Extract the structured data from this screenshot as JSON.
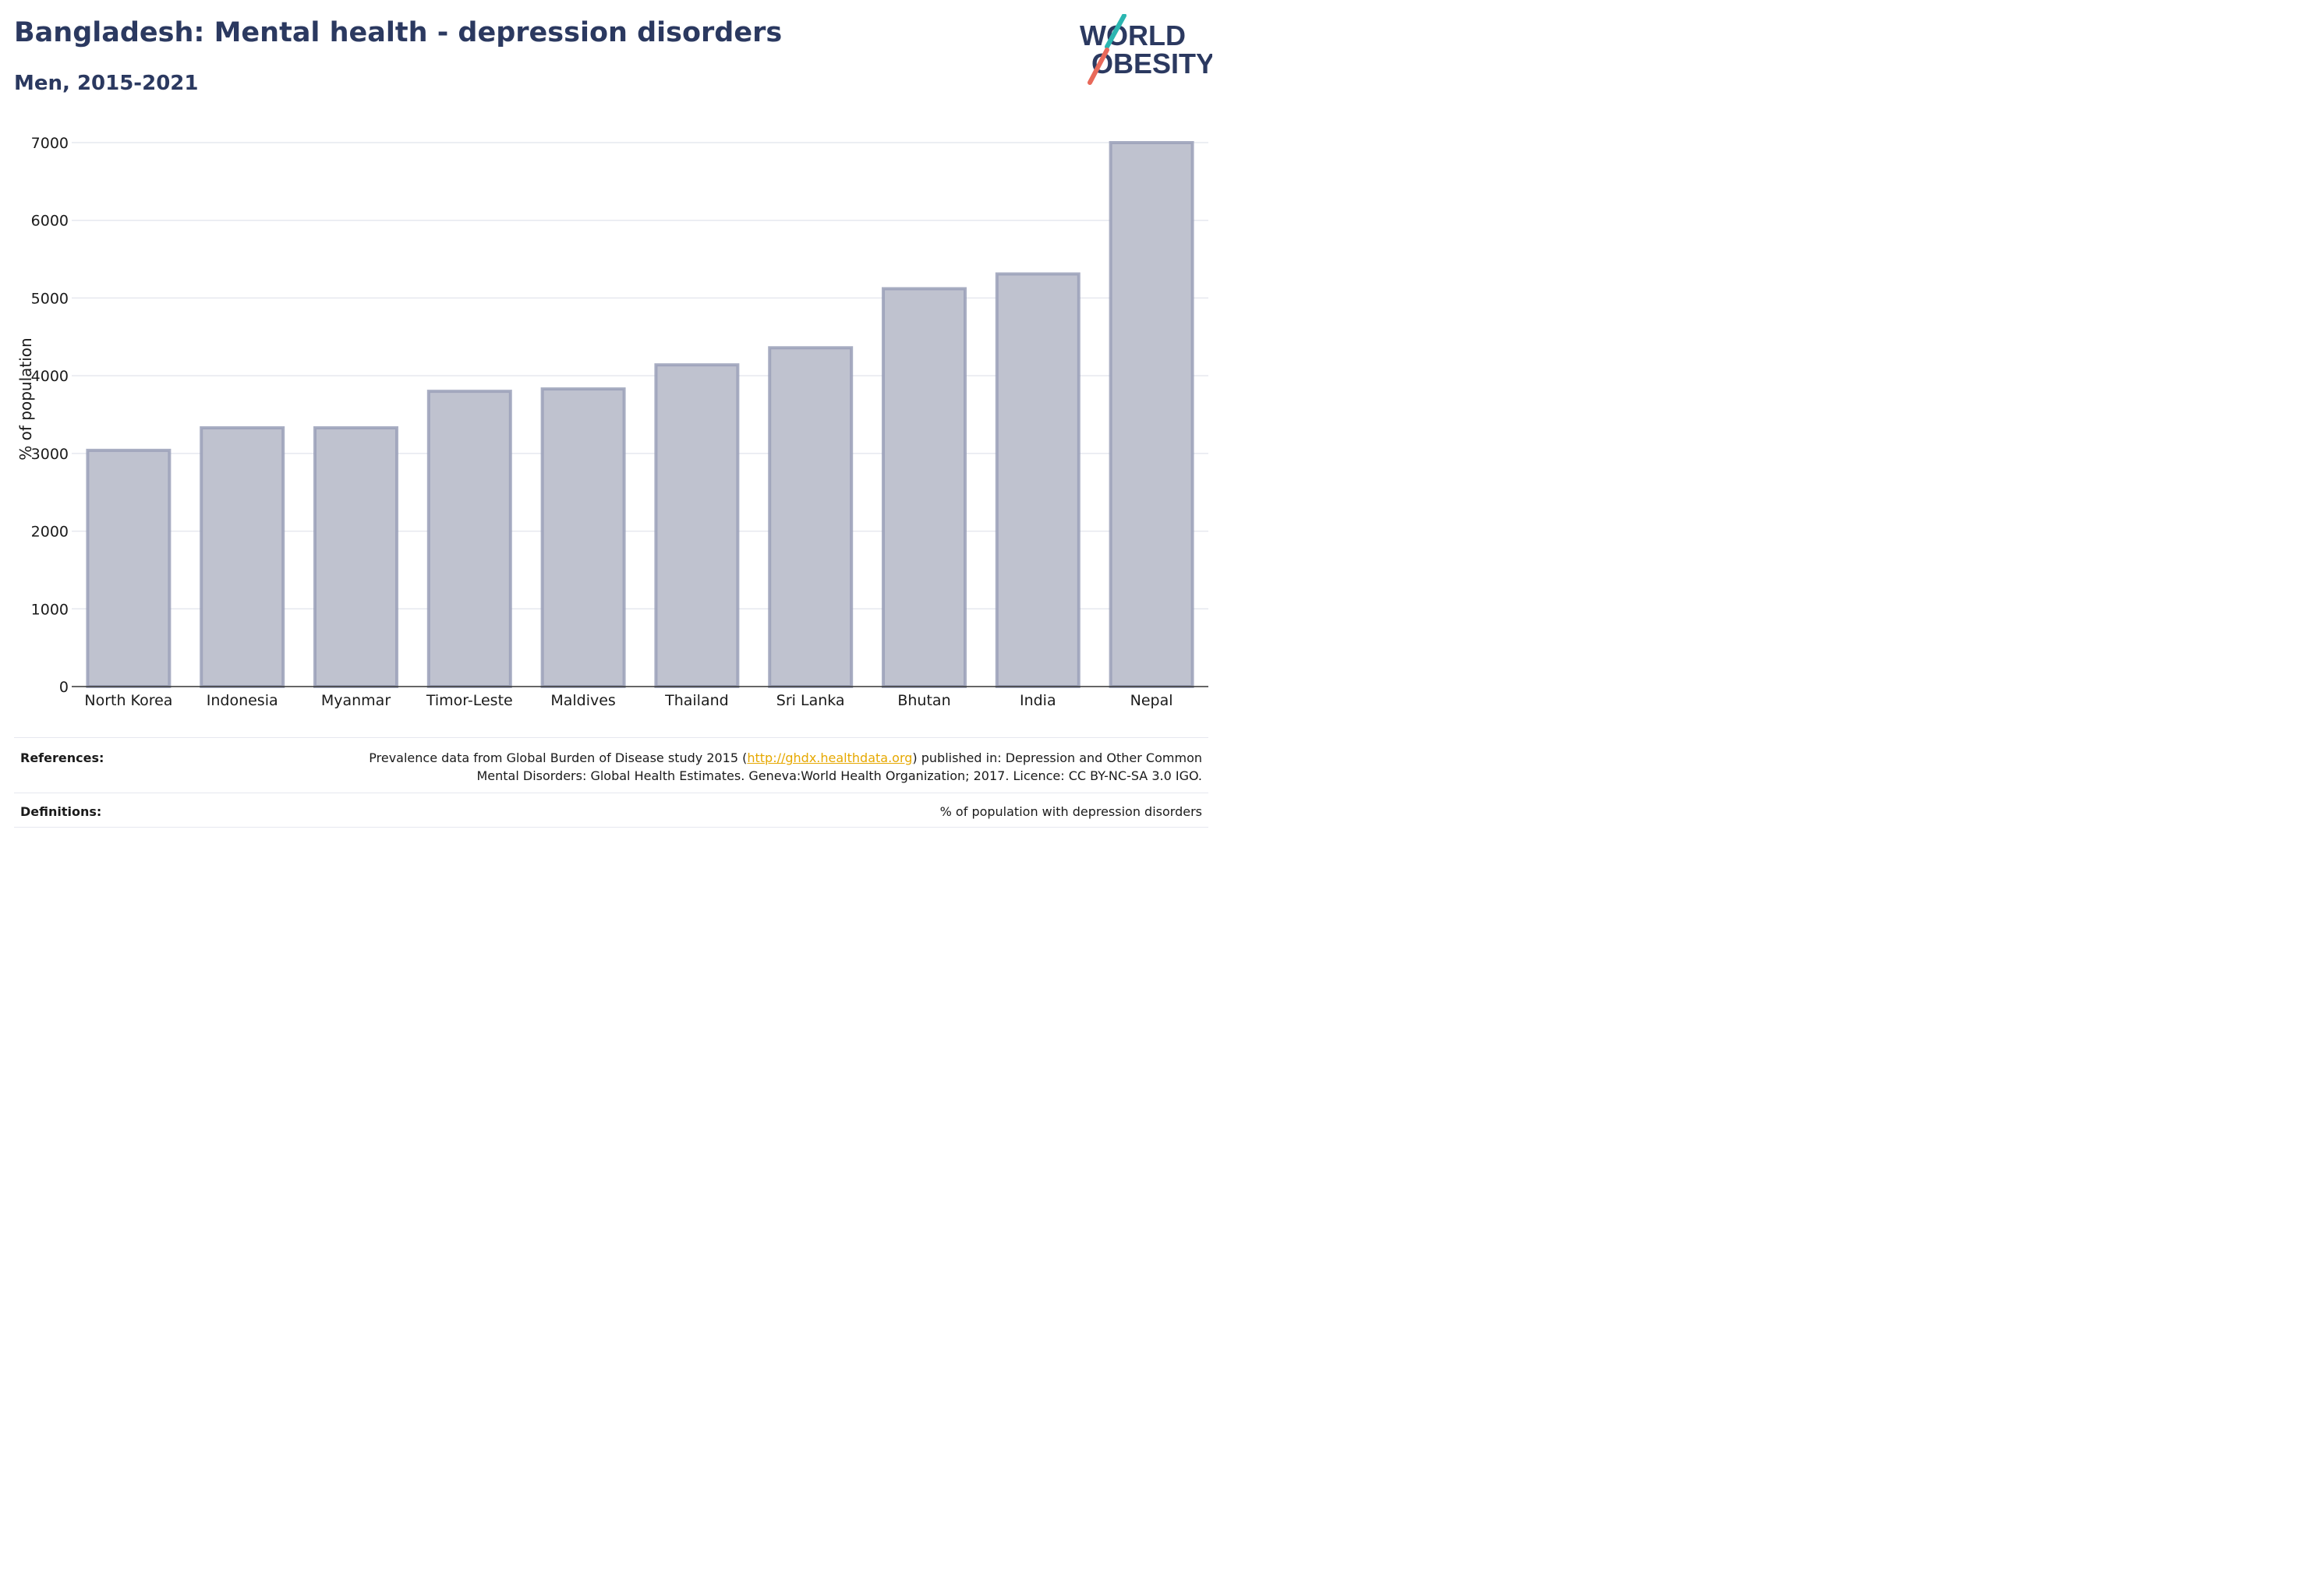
{
  "header": {
    "title": "Bangladesh: Mental health - depression disorders",
    "subtitle": "Men, 2015-2021"
  },
  "logo": {
    "line1": "WORLD",
    "line2": "OBESITY",
    "colors": {
      "text": "#2b3960",
      "slash_teal": "#2bb6b1",
      "slash_red": "#e8695a"
    }
  },
  "chart_data": {
    "type": "bar",
    "categories": [
      "North Korea",
      "Indonesia",
      "Myanmar",
      "Timor-Leste",
      "Maldives",
      "Thailand",
      "Sri Lanka",
      "Bhutan",
      "India",
      "Nepal"
    ],
    "values": [
      3040,
      3330,
      3330,
      3800,
      3830,
      4140,
      4360,
      5120,
      5310,
      7000
    ],
    "ylabel": "% of population",
    "ylim": [
      0,
      7000
    ],
    "yticks": [
      "0",
      "1000",
      "2000",
      "3000",
      "4000",
      "5000",
      "6000",
      "7000"
    ],
    "grid": true,
    "colors": {
      "bar_fill": "#bfc2cf",
      "bar_stroke": "#9aa0b8",
      "grid": "#e6e8ef",
      "axis": "#333333"
    }
  },
  "footer": {
    "references_label": "References:",
    "references_pre": "Prevalence data from Global Burden of Disease study 2015 (",
    "references_link": "http://ghdx.healthdata.org",
    "references_post": ") published in: Depression and Other Common",
    "references_line2": "Mental Disorders: Global Health Estimates. Geneva:World Health Organization; 2017. Licence: CC BY-NC-SA 3.0 IGO.",
    "definitions_label": "Definitions:",
    "definitions_text": "% of population with depression disorders"
  }
}
